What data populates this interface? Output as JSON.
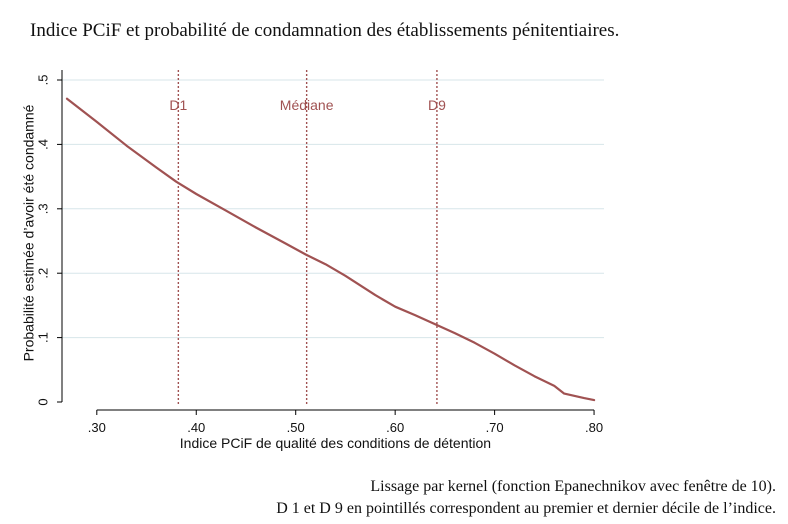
{
  "title": "Indice PCiF et probabilité de condamnation des établissements pénitentiaires.",
  "notes": {
    "line1": "Lissage par kernel (fonction Epanechnikov avec fenêtre de 10).",
    "line2": "D 1 et D 9 en pointillés correspondent au premier et dernier décile de l’indice."
  },
  "chart_data": {
    "type": "line",
    "xlabel": "Indice PCiF de qualité des conditions de détention",
    "ylabel": "Probabilité estimée d’avoir été condamné",
    "xlim": [
      0.265,
      0.81
    ],
    "ylim": [
      0,
      0.5
    ],
    "x_ticks": [
      0.3,
      0.4,
      0.5,
      0.6,
      0.7,
      0.8
    ],
    "x_tick_labels": [
      ".30",
      ".40",
      ".50",
      ".60",
      ".70",
      ".80"
    ],
    "y_ticks": [
      0,
      0.1,
      0.2,
      0.3,
      0.4,
      0.5
    ],
    "y_tick_labels": [
      "0",
      ".1",
      ".2",
      ".3",
      ".4",
      ".5"
    ],
    "grid": true,
    "colors": {
      "line": "#a05252",
      "grid": "#d7e6ea",
      "axis": "#000000"
    },
    "reference_lines": [
      {
        "label": "D1",
        "x": 0.382
      },
      {
        "label": "Médiane",
        "x": 0.511
      },
      {
        "label": "D9",
        "x": 0.642
      }
    ],
    "series": [
      {
        "x": [
          0.27,
          0.3,
          0.33,
          0.36,
          0.38,
          0.4,
          0.43,
          0.46,
          0.49,
          0.51,
          0.53,
          0.55,
          0.58,
          0.6,
          0.62,
          0.64,
          0.66,
          0.68,
          0.7,
          0.72,
          0.74,
          0.76,
          0.77,
          0.79,
          0.8
        ],
        "y": [
          0.471,
          0.435,
          0.398,
          0.364,
          0.342,
          0.323,
          0.297,
          0.271,
          0.246,
          0.229,
          0.214,
          0.196,
          0.166,
          0.148,
          0.135,
          0.121,
          0.107,
          0.092,
          0.075,
          0.057,
          0.04,
          0.025,
          0.013,
          0.006,
          0.003
        ]
      }
    ]
  }
}
